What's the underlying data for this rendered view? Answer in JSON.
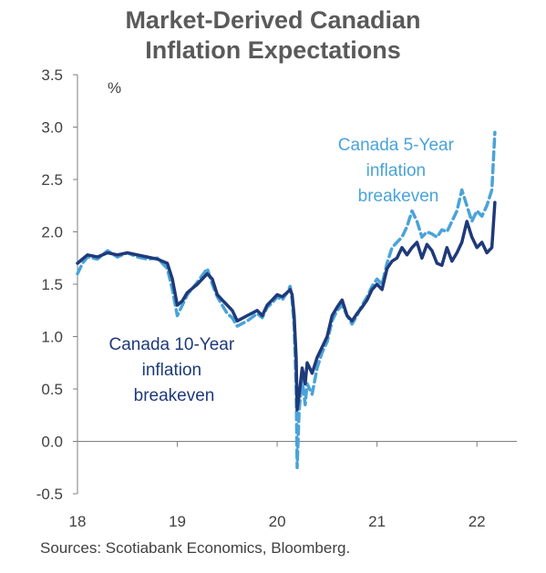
{
  "chart_data": {
    "type": "line",
    "title_line1": "Market-Derived Canadian",
    "title_line2": "Inflation Expectations",
    "ylabel": "%",
    "ylim": [
      -0.5,
      3.5
    ],
    "xlim": [
      2018.0,
      2022.4
    ],
    "y_ticks": [
      "3.5",
      "3.0",
      "2.5",
      "2.0",
      "1.5",
      "1.0",
      "0.5",
      "0.0",
      "-0.5"
    ],
    "x_ticks": [
      "18",
      "19",
      "20",
      "21",
      "22"
    ],
    "grid": false,
    "colors": {
      "ten_year": "#1f3a7a",
      "five_year": "#4aa3d8"
    },
    "series": [
      {
        "key": "ten_year",
        "label_lines": [
          "Canada 10-Year",
          "inflation",
          "breakeven"
        ],
        "style": "solid",
        "x": [
          2018.0,
          2018.05,
          2018.1,
          2018.2,
          2018.3,
          2018.4,
          2018.5,
          2018.6,
          2018.7,
          2018.8,
          2018.85,
          2018.9,
          2018.95,
          2019.0,
          2019.05,
          2019.1,
          2019.2,
          2019.3,
          2019.35,
          2019.4,
          2019.45,
          2019.5,
          2019.55,
          2019.6,
          2019.7,
          2019.8,
          2019.85,
          2019.9,
          2019.95,
          2020.0,
          2020.05,
          2020.1,
          2020.13,
          2020.15,
          2020.17,
          2020.19,
          2020.2,
          2020.22,
          2020.25,
          2020.28,
          2020.3,
          2020.35,
          2020.4,
          2020.45,
          2020.5,
          2020.55,
          2020.6,
          2020.65,
          2020.7,
          2020.75,
          2020.8,
          2020.85,
          2020.9,
          2020.95,
          2021.0,
          2021.05,
          2021.1,
          2021.15,
          2021.2,
          2021.25,
          2021.3,
          2021.35,
          2021.4,
          2021.45,
          2021.5,
          2021.55,
          2021.6,
          2021.65,
          2021.7,
          2021.75,
          2021.8,
          2021.85,
          2021.9,
          2021.95,
          2022.0,
          2022.05,
          2022.1,
          2022.15,
          2022.18
        ],
        "y": [
          1.7,
          1.74,
          1.78,
          1.76,
          1.8,
          1.78,
          1.8,
          1.78,
          1.76,
          1.74,
          1.72,
          1.7,
          1.55,
          1.3,
          1.34,
          1.42,
          1.5,
          1.6,
          1.55,
          1.4,
          1.35,
          1.3,
          1.25,
          1.15,
          1.2,
          1.25,
          1.2,
          1.3,
          1.35,
          1.4,
          1.38,
          1.42,
          1.45,
          1.4,
          1.2,
          0.8,
          0.3,
          0.45,
          0.7,
          0.55,
          0.75,
          0.65,
          0.8,
          0.9,
          1.0,
          1.2,
          1.28,
          1.35,
          1.2,
          1.15,
          1.22,
          1.28,
          1.35,
          1.45,
          1.5,
          1.45,
          1.65,
          1.72,
          1.75,
          1.85,
          1.78,
          1.85,
          1.9,
          1.75,
          1.88,
          1.82,
          1.7,
          1.68,
          1.85,
          1.72,
          1.8,
          1.9,
          2.1,
          1.95,
          1.85,
          1.9,
          1.8,
          1.85,
          2.28
        ]
      },
      {
        "key": "five_year",
        "label_lines": [
          "Canada 5-Year",
          "inflation",
          "breakeven"
        ],
        "style": "dashed",
        "x": [
          2018.0,
          2018.05,
          2018.1,
          2018.2,
          2018.3,
          2018.4,
          2018.5,
          2018.6,
          2018.7,
          2018.8,
          2018.85,
          2018.9,
          2018.95,
          2019.0,
          2019.05,
          2019.1,
          2019.2,
          2019.3,
          2019.35,
          2019.4,
          2019.45,
          2019.5,
          2019.55,
          2019.6,
          2019.7,
          2019.8,
          2019.85,
          2019.9,
          2019.95,
          2020.0,
          2020.05,
          2020.1,
          2020.13,
          2020.15,
          2020.17,
          2020.19,
          2020.2,
          2020.22,
          2020.25,
          2020.28,
          2020.3,
          2020.35,
          2020.4,
          2020.45,
          2020.5,
          2020.55,
          2020.6,
          2020.65,
          2020.7,
          2020.75,
          2020.8,
          2020.85,
          2020.9,
          2020.95,
          2021.0,
          2021.05,
          2021.1,
          2021.15,
          2021.2,
          2021.25,
          2021.3,
          2021.35,
          2021.4,
          2021.45,
          2021.5,
          2021.55,
          2021.6,
          2021.65,
          2021.7,
          2021.75,
          2021.8,
          2021.85,
          2021.9,
          2021.95,
          2022.0,
          2022.05,
          2022.1,
          2022.15,
          2022.18
        ],
        "y": [
          1.6,
          1.7,
          1.76,
          1.74,
          1.82,
          1.76,
          1.8,
          1.76,
          1.74,
          1.75,
          1.7,
          1.65,
          1.45,
          1.2,
          1.3,
          1.4,
          1.52,
          1.65,
          1.5,
          1.38,
          1.3,
          1.22,
          1.18,
          1.1,
          1.15,
          1.22,
          1.18,
          1.28,
          1.32,
          1.38,
          1.35,
          1.42,
          1.48,
          1.35,
          1.1,
          0.5,
          -0.25,
          0.3,
          0.6,
          0.35,
          0.55,
          0.45,
          0.7,
          0.85,
          0.95,
          1.15,
          1.25,
          1.3,
          1.2,
          1.12,
          1.2,
          1.3,
          1.38,
          1.48,
          1.55,
          1.5,
          1.7,
          1.85,
          1.9,
          1.95,
          2.05,
          2.2,
          2.1,
          1.95,
          2.0,
          1.98,
          1.95,
          2.02,
          2.0,
          2.1,
          2.2,
          2.4,
          2.25,
          2.1,
          2.2,
          2.15,
          2.25,
          2.4,
          2.95
        ]
      }
    ]
  },
  "source_text": "Sources:  Scotiabank Economics, Bloomberg."
}
